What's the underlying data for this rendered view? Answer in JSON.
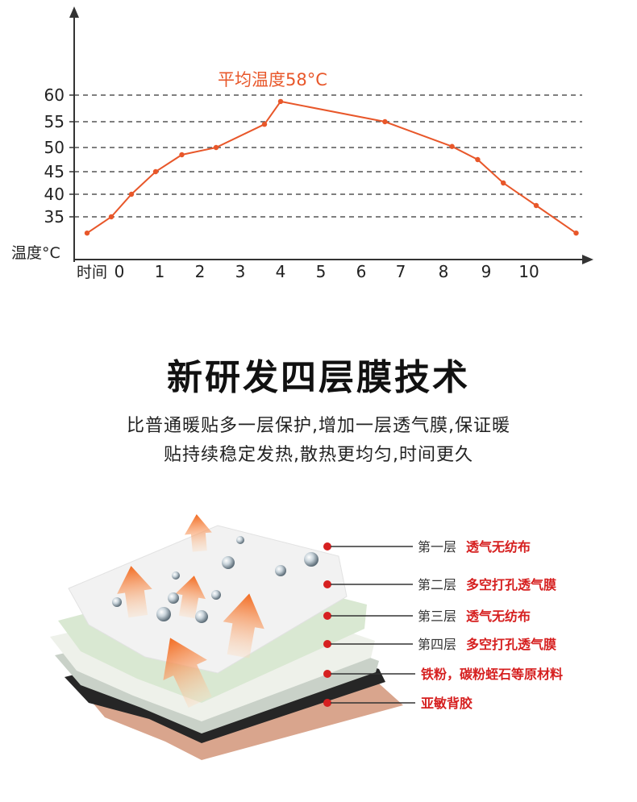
{
  "chart_data": {
    "type": "line",
    "annotation": "平均温度58°C",
    "ylabel": "温度°C",
    "xlabel": "时间",
    "ytick_labels": [
      "60",
      "55",
      "50",
      "45",
      "40",
      "35"
    ],
    "xtick_labels": [
      "0",
      "1",
      "2",
      "3",
      "4",
      "5",
      "6",
      "7",
      "8",
      "9",
      "10"
    ],
    "ylim": [
      30,
      60
    ],
    "grid": true,
    "series": [
      {
        "x": [
          -0.8,
          -0.2,
          0.3,
          0.9,
          1.55,
          2.4,
          3.6,
          4.0,
          6.6,
          8.2,
          8.8,
          9.4,
          10.2,
          11.3
        ],
        "y": [
          30.8,
          35.0,
          40.0,
          45.0,
          48.5,
          50.0,
          54.5,
          58.8,
          55.0,
          50.2,
          47.5,
          42.5,
          37.5,
          30.8
        ]
      }
    ],
    "colors": {
      "line": "#e8572a",
      "grid": "#555555",
      "annotation": "#e8572a"
    }
  },
  "heading": "新研发四层膜技术",
  "description": {
    "line1": "比普通暖贴多一层保护,增加一层透气膜,保证暖",
    "line2": "贴持续稳定发热,散热更均匀,时间更久"
  },
  "layers": [
    {
      "prefix": "第一层",
      "label": "透气无纺布"
    },
    {
      "prefix": "第二层",
      "label": "多空打孔透气膜"
    },
    {
      "prefix": "第三层",
      "label": "透气无纺布"
    },
    {
      "prefix": "第四层",
      "label": "多空打孔透气膜"
    },
    {
      "prefix": "",
      "label": "铁粉，碳粉蛭石等原材料"
    },
    {
      "prefix": "",
      "label": "亚敏背胶"
    }
  ],
  "colors": {
    "accent": "#e8572a",
    "label_red": "#d62020"
  }
}
